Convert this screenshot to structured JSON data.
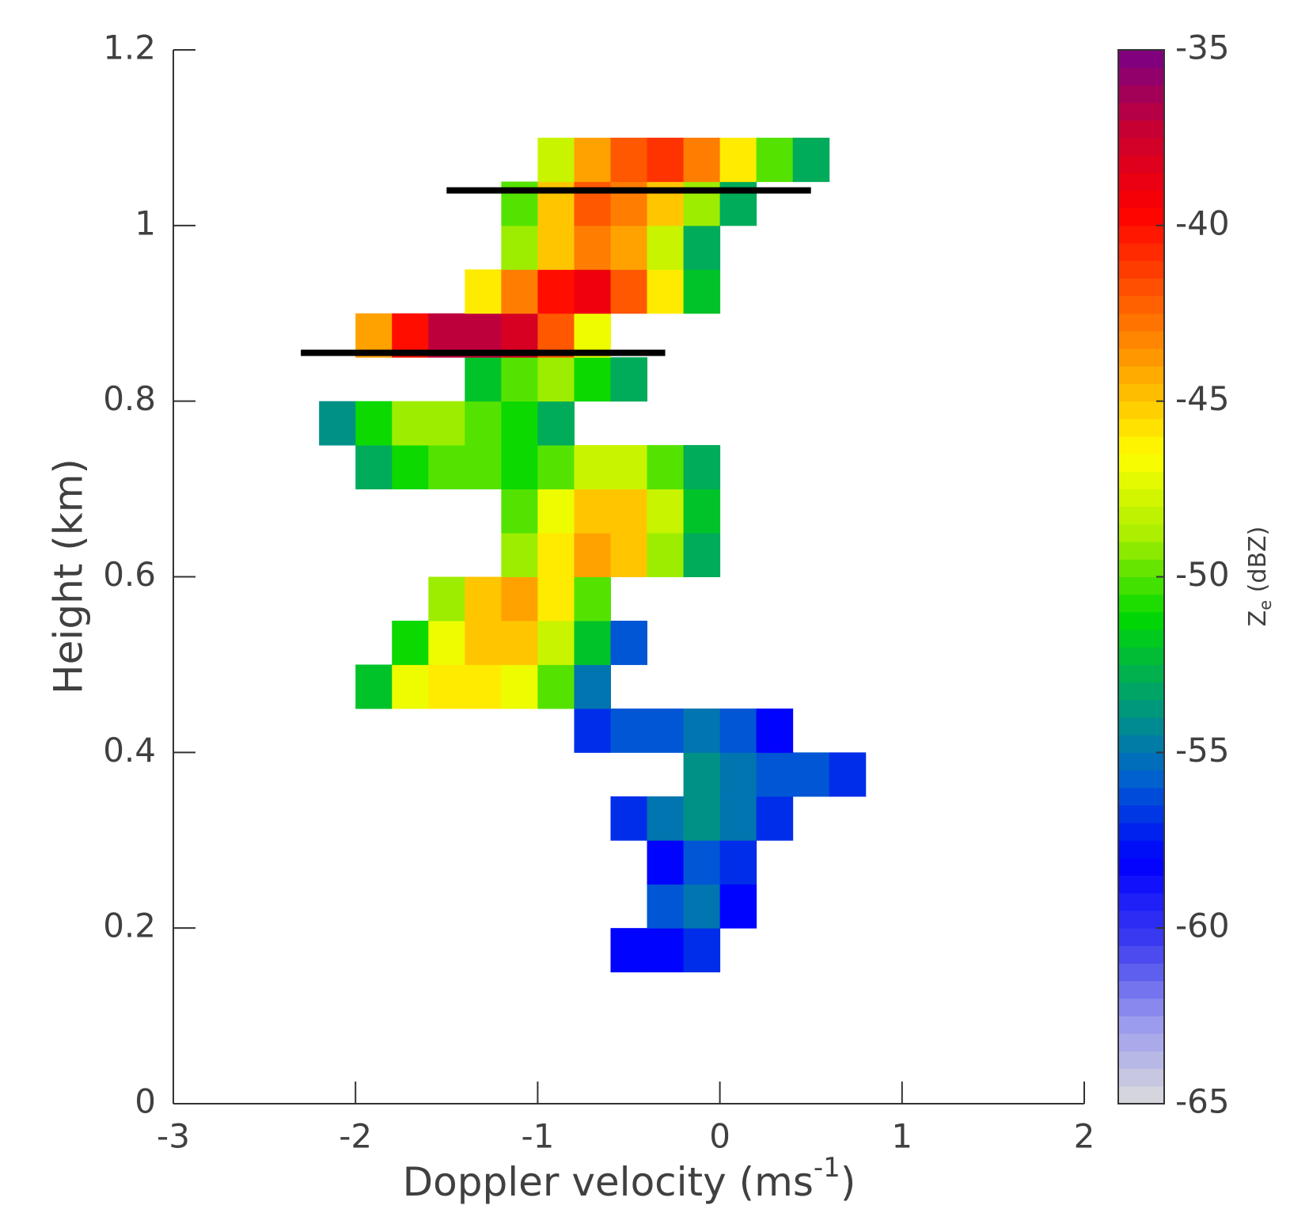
{
  "chart_data": {
    "type": "heatmap",
    "xlabel": {
      "text": "Doppler velocity (ms",
      "sup": "-1",
      "end": ")"
    },
    "ylabel": "Height (km)",
    "xlim": [
      -3,
      2
    ],
    "xticks": [
      -3,
      -2,
      -1,
      0,
      1,
      2
    ],
    "ylim": [
      0,
      1.2
    ],
    "yticks": [
      0,
      0.2,
      0.4,
      0.6,
      0.8,
      1,
      1.2
    ],
    "x": [
      -2.3,
      -2.1,
      -1.9,
      -1.7,
      -1.5,
      -1.3,
      -1.1,
      -0.9,
      -0.7,
      -0.5,
      -0.3,
      -0.1,
      0.1,
      0.3,
      0.5,
      0.7,
      0.9
    ],
    "y": [
      0.175,
      0.225,
      0.275,
      0.325,
      0.375,
      0.425,
      0.475,
      0.525,
      0.575,
      0.625,
      0.675,
      0.725,
      0.775,
      0.825,
      0.875,
      0.925,
      0.975,
      1.025,
      1.075
    ],
    "z": [
      [
        null,
        null,
        null,
        null,
        null,
        null,
        null,
        null,
        null,
        -58,
        -58,
        -57,
        null,
        null,
        null,
        null,
        null
      ],
      [
        null,
        null,
        null,
        null,
        null,
        null,
        null,
        null,
        null,
        null,
        -56,
        -55,
        -58,
        null,
        null,
        null,
        null
      ],
      [
        null,
        null,
        null,
        null,
        null,
        null,
        null,
        null,
        null,
        null,
        -58,
        -56,
        -57,
        null,
        null,
        null,
        null
      ],
      [
        null,
        null,
        null,
        null,
        null,
        null,
        null,
        null,
        null,
        -57,
        -55,
        -54,
        -55,
        -57,
        null,
        null,
        null
      ],
      [
        null,
        null,
        null,
        null,
        null,
        null,
        null,
        null,
        null,
        null,
        null,
        -54,
        -55,
        -56,
        -56,
        -57,
        null
      ],
      [
        null,
        null,
        null,
        null,
        null,
        null,
        null,
        null,
        -57,
        -56,
        -56,
        -55,
        -56,
        -58,
        null,
        null,
        null
      ],
      [
        null,
        null,
        -52,
        -47,
        -46,
        -46,
        -47,
        -50,
        -55,
        null,
        null,
        null,
        null,
        null,
        null,
        null,
        null
      ],
      [
        null,
        null,
        null,
        -51,
        -47,
        -45,
        -45,
        -48,
        -52,
        -56,
        null,
        null,
        null,
        null,
        null,
        null,
        null
      ],
      [
        null,
        null,
        null,
        null,
        -49,
        -45,
        -44,
        -46,
        -50,
        null,
        null,
        null,
        null,
        null,
        null,
        null,
        null
      ],
      [
        null,
        null,
        null,
        null,
        null,
        null,
        -49,
        -46,
        -44,
        -45,
        -49,
        -53,
        null,
        null,
        null,
        null,
        null
      ],
      [
        null,
        null,
        null,
        null,
        null,
        null,
        -50,
        -47,
        -45,
        -45,
        -48,
        -52,
        null,
        null,
        null,
        null,
        null
      ],
      [
        null,
        null,
        -53,
        -51,
        -50,
        -50,
        -51,
        -50,
        -48,
        -48,
        -50,
        -53,
        null,
        null,
        null,
        null,
        null
      ],
      [
        null,
        -54,
        -51,
        -49,
        -49,
        -50,
        -51,
        -53,
        null,
        null,
        null,
        null,
        null,
        null,
        null,
        null,
        null
      ],
      [
        null,
        null,
        null,
        null,
        null,
        -52,
        -50,
        -49,
        -51,
        -53,
        null,
        null,
        null,
        null,
        null,
        null,
        null
      ],
      [
        null,
        null,
        -44,
        -40,
        -37,
        -37,
        -38,
        -42,
        -47,
        null,
        null,
        null,
        null,
        null,
        null,
        null,
        null
      ],
      [
        null,
        null,
        null,
        null,
        null,
        -46,
        -43,
        -40,
        -39,
        -42,
        -46,
        -52,
        null,
        null,
        null,
        null,
        null
      ],
      [
        null,
        null,
        null,
        null,
        null,
        null,
        -49,
        -45,
        -43,
        -44,
        -48,
        -53,
        null,
        null,
        null,
        null,
        null
      ],
      [
        null,
        null,
        null,
        null,
        null,
        null,
        -50,
        -45,
        -42,
        -43,
        -45,
        -49,
        -53,
        null,
        null,
        null,
        null
      ],
      [
        null,
        null,
        null,
        null,
        null,
        null,
        null,
        -48,
        -44,
        -42,
        -41,
        -43,
        -46,
        -50,
        -53,
        null,
        null
      ]
    ],
    "lines": [
      {
        "y": 1.04,
        "x": [
          -1.5,
          0.5
        ]
      },
      {
        "y": 0.855,
        "x": [
          -2.3,
          -0.3
        ]
      }
    ],
    "colorbar": {
      "label": {
        "text": "Z",
        "sub": "e",
        "unit": " (dBZ)"
      },
      "lim": [
        -65,
        -35
      ],
      "ticks": [
        -65,
        -60,
        -55,
        -50,
        -45,
        -40,
        -35
      ],
      "colors": [
        "#dcdcdc",
        "#9a9aee",
        "#3c3cf0",
        "#0000ff",
        "#0060d0",
        "#00a070",
        "#00d800",
        "#a8ee00",
        "#ffff00",
        "#ffaa00",
        "#ff5500",
        "#ff0000",
        "#c80030",
        "#780088"
      ]
    }
  }
}
